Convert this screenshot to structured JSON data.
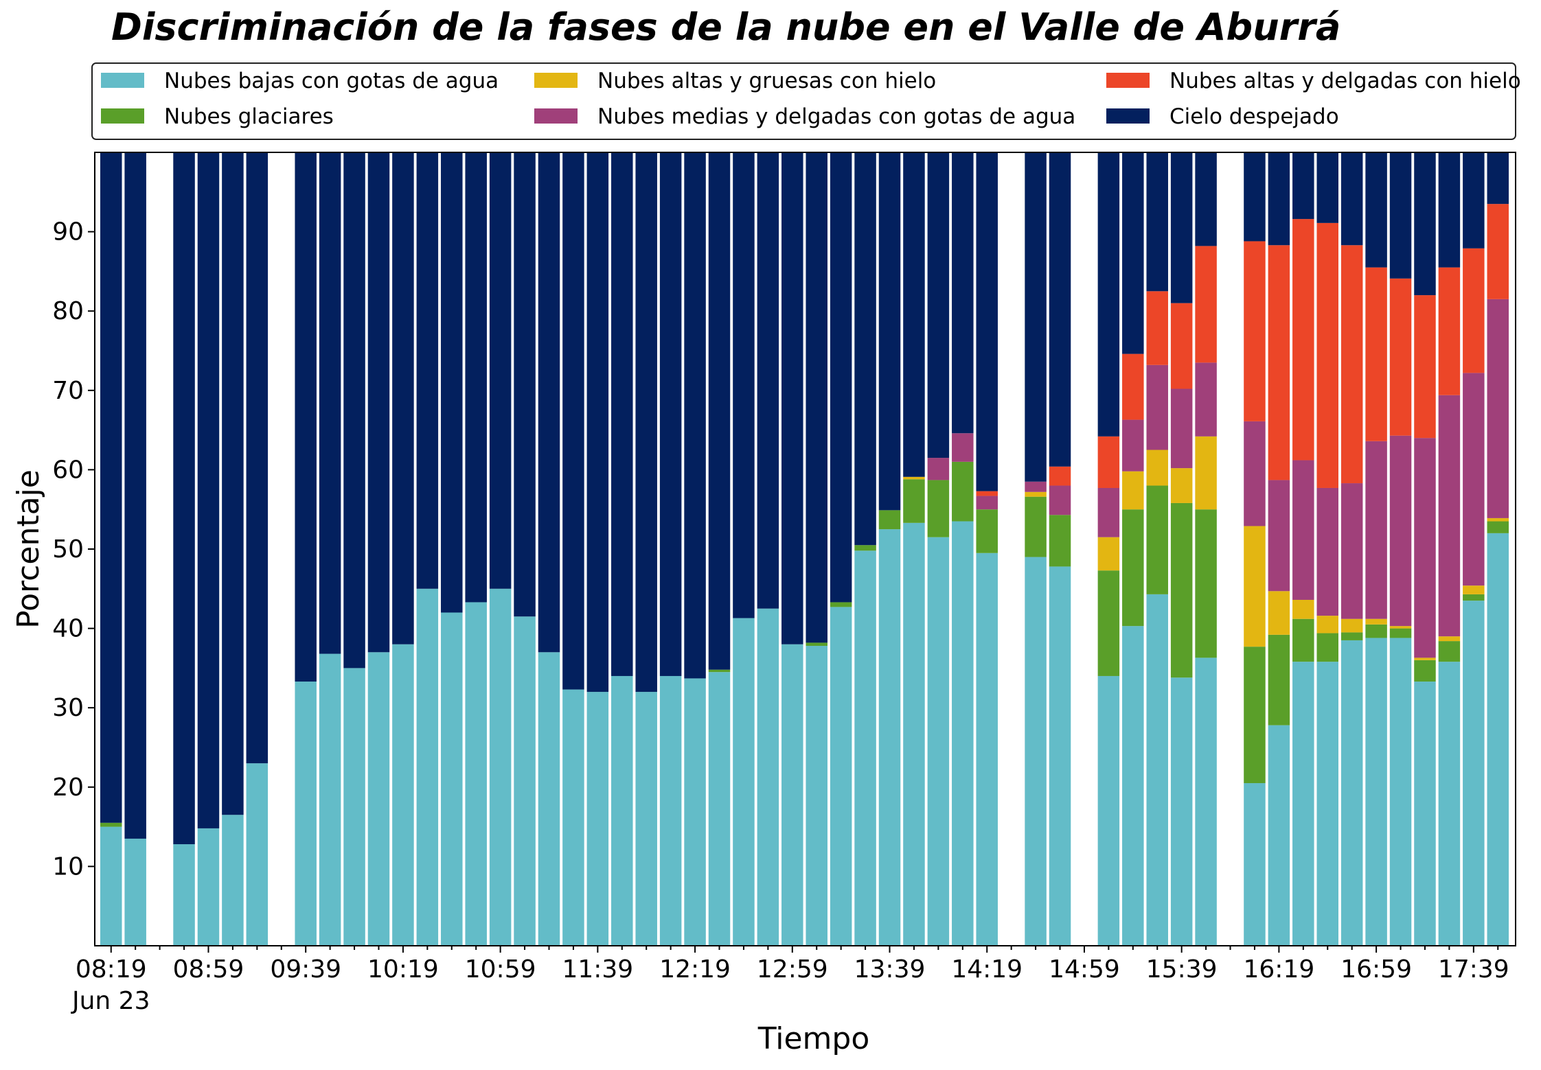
{
  "chart_data": {
    "type": "bar",
    "stacked": true,
    "title": "Discriminación de la fases de la nube en el Valle de Aburrá",
    "xlabel": "Tiempo",
    "ylabel": "Porcentaje",
    "ylim": [
      0,
      100
    ],
    "yticks": [
      10,
      20,
      30,
      40,
      50,
      60,
      70,
      80,
      90
    ],
    "date_label": "Jun 23",
    "xtick_labels": [
      "08:19",
      "08:59",
      "09:39",
      "10:19",
      "10:59",
      "11:39",
      "12:19",
      "12:59",
      "13:39",
      "14:19",
      "14:59",
      "15:39",
      "16:19",
      "16:59",
      "17:39"
    ],
    "grid": false,
    "legend_position": "top",
    "categories": [
      "08:19",
      "08:29",
      "08:39",
      "08:49",
      "08:59",
      "09:09",
      "09:19",
      "09:29",
      "09:39",
      "09:49",
      "09:59",
      "10:09",
      "10:19",
      "10:29",
      "10:39",
      "10:49",
      "10:59",
      "11:09",
      "11:19",
      "11:29",
      "11:39",
      "11:49",
      "11:59",
      "12:09",
      "12:19",
      "12:29",
      "12:39",
      "12:49",
      "12:59",
      "13:09",
      "13:19",
      "13:29",
      "13:39",
      "13:49",
      "13:59",
      "14:09",
      "14:19",
      "14:29",
      "14:39",
      "14:49",
      "14:59",
      "15:09",
      "15:19",
      "15:29",
      "15:39",
      "15:49",
      "15:59",
      "16:09",
      "16:19",
      "16:29",
      "16:39",
      "16:49",
      "16:59",
      "17:09",
      "17:19",
      "17:29",
      "17:39",
      "17:49"
    ],
    "series": [
      {
        "name": "Nubes bajas con gotas de agua",
        "color": "#63bcc8",
        "values": [
          15,
          13.5,
          null,
          12.8,
          14.8,
          16.5,
          23,
          null,
          33.3,
          36.8,
          35,
          37,
          38,
          45,
          42,
          43.3,
          45,
          41.5,
          37,
          32.3,
          32,
          34,
          32,
          34,
          33.7,
          34.5,
          41.3,
          42.5,
          38,
          37.8,
          42.7,
          49.8,
          52.5,
          53.3,
          51.5,
          53.5,
          49.5,
          null,
          49,
          47.8,
          null,
          34,
          40.3,
          44.3,
          33.8,
          36.3,
          null,
          20.5,
          27.8,
          35.8,
          35.8,
          38.5,
          38.8,
          38.8,
          33.3,
          35.8,
          43.5,
          52
        ]
      },
      {
        "name": "Nubes glaciares",
        "color": "#5a9f29",
        "values": [
          0.5,
          0,
          null,
          0,
          0,
          0,
          0,
          null,
          0,
          0,
          0,
          0,
          0,
          0,
          0,
          0,
          0,
          0,
          0,
          0,
          0,
          0,
          0,
          0,
          0,
          0.3,
          0,
          0,
          0,
          0.4,
          0.6,
          0.7,
          2.4,
          5.5,
          7.2,
          7.5,
          5.5,
          null,
          7.6,
          6.5,
          null,
          13.3,
          14.7,
          13.7,
          22,
          18.7,
          null,
          17.2,
          11.4,
          5.4,
          3.6,
          1,
          1.7,
          1.2,
          2.7,
          2.6,
          0.8,
          1.5
        ]
      },
      {
        "name": "Nubes altas y gruesas con hielo",
        "color": "#e3b612",
        "values": [
          0,
          0,
          null,
          0,
          0,
          0,
          0,
          null,
          0,
          0,
          0,
          0,
          0,
          0,
          0,
          0,
          0,
          0,
          0,
          0,
          0,
          0,
          0,
          0,
          0,
          0,
          0,
          0,
          0,
          0,
          0,
          0,
          0,
          0.3,
          0,
          0,
          0,
          null,
          0.6,
          0,
          null,
          4.2,
          4.8,
          4.5,
          4.4,
          9.2,
          null,
          15.2,
          5.5,
          2.4,
          2.2,
          1.7,
          0.7,
          0.3,
          0.3,
          0.6,
          1.1,
          0.4
        ]
      },
      {
        "name": "Nubes medias y delgadas con gotas de agua",
        "color": "#a0407a",
        "values": [
          0,
          0,
          null,
          0,
          0,
          0,
          0,
          null,
          0,
          0,
          0,
          0,
          0,
          0,
          0,
          0,
          0,
          0,
          0,
          0,
          0,
          0,
          0,
          0,
          0,
          0,
          0,
          0,
          0,
          0,
          0,
          0,
          0,
          0,
          2.8,
          3.6,
          1.7,
          null,
          1.3,
          3.7,
          null,
          6.2,
          6.5,
          10.7,
          10,
          9.3,
          null,
          13.2,
          14,
          17.6,
          16.1,
          17.1,
          22.4,
          24,
          27.7,
          30.4,
          26.8,
          27.6
        ]
      },
      {
        "name": "Nubes altas y delgadas con hielo",
        "color": "#ec4628",
        "values": [
          0,
          0,
          null,
          0,
          0,
          0,
          0,
          null,
          0,
          0,
          0,
          0,
          0,
          0,
          0,
          0,
          0,
          0,
          0,
          0,
          0,
          0,
          0,
          0,
          0,
          0,
          0,
          0,
          0,
          0,
          0,
          0,
          0,
          0,
          0,
          0,
          0.6,
          null,
          0,
          2.4,
          null,
          6.5,
          8.3,
          9.3,
          10.8,
          14.7,
          null,
          22.7,
          29.6,
          30.4,
          33.4,
          30,
          21.9,
          19.8,
          18,
          16.1,
          15.7,
          12
        ]
      },
      {
        "name": "Cielo despejado",
        "color": "#03205e",
        "values": [
          84.5,
          86.5,
          null,
          87.2,
          85.2,
          83.5,
          77,
          null,
          66.7,
          63.2,
          65,
          63,
          62,
          55,
          58,
          56.7,
          55,
          58.5,
          63,
          67.7,
          68,
          66,
          68,
          66,
          66.3,
          65.2,
          58.7,
          57.5,
          62,
          61.8,
          56.7,
          49.5,
          45.1,
          40.9,
          38.5,
          35.4,
          42.7,
          null,
          41.5,
          39.6,
          null,
          35.8,
          25.4,
          17.5,
          19,
          11.8,
          null,
          11.2,
          11.7,
          8.4,
          8.9,
          11.7,
          14.5,
          15.9,
          18,
          14.5,
          12.1,
          6.5
        ]
      }
    ]
  }
}
